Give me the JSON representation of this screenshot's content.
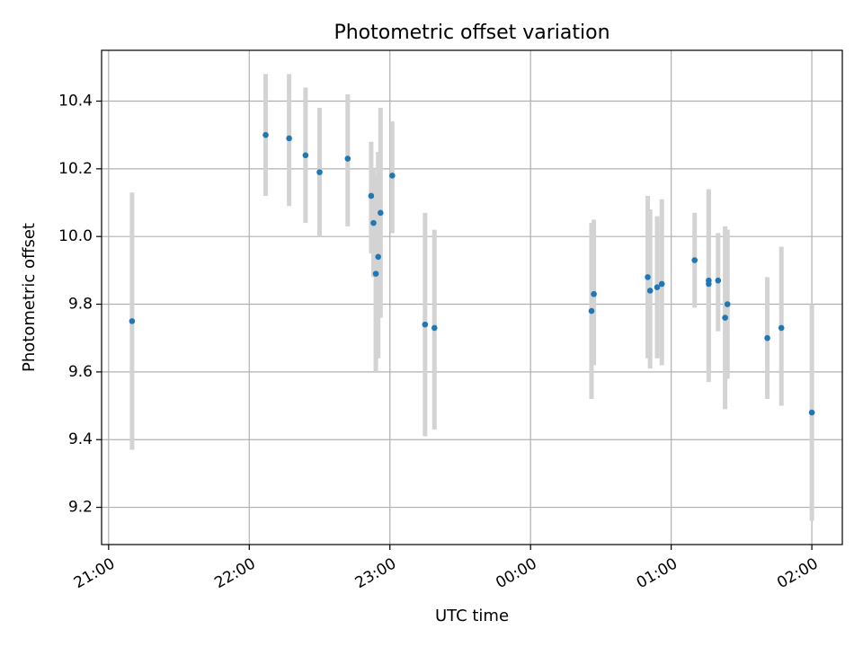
{
  "chart_data": {
    "type": "scatter",
    "title": "Photometric offset variation",
    "xlabel": "UTC time",
    "ylabel": "Photometric offset",
    "x_tick_labels": [
      "21:00",
      "22:00",
      "23:00",
      "00:00",
      "01:00",
      "02:00"
    ],
    "y_tick_labels": [
      "9.2",
      "9.4",
      "9.6",
      "9.8",
      "10.0",
      "10.2",
      "10.4"
    ],
    "x_ticks": [
      "21:00",
      "22:00",
      "23:00",
      "24:00",
      "25:00",
      "26:00"
    ],
    "y_ticks": [
      9.2,
      9.4,
      9.6,
      9.8,
      10.0,
      10.2,
      10.4
    ],
    "xlim": [
      "20:57",
      "26:13"
    ],
    "ylim": [
      9.09,
      10.55
    ],
    "grid": true,
    "series": [
      {
        "marker_color": "#1f77b4",
        "errorbar_color": "#d3d3d3",
        "points": [
          {
            "x": "21:10",
            "y": 9.75,
            "low": 9.37,
            "high": 10.13
          },
          {
            "x": "22:07",
            "y": 10.3,
            "low": 10.12,
            "high": 10.48
          },
          {
            "x": "22:17",
            "y": 10.29,
            "low": 10.09,
            "high": 10.48
          },
          {
            "x": "22:24",
            "y": 10.24,
            "low": 10.04,
            "high": 10.44
          },
          {
            "x": "22:30",
            "y": 10.19,
            "low": 10.0,
            "high": 10.38
          },
          {
            "x": "22:42",
            "y": 10.23,
            "low": 10.03,
            "high": 10.42
          },
          {
            "x": "22:52",
            "y": 10.12,
            "low": 9.95,
            "high": 10.28
          },
          {
            "x": "22:53",
            "y": 10.04,
            "low": 9.88,
            "high": 10.2
          },
          {
            "x": "22:54",
            "y": 9.89,
            "low": 9.6,
            "high": 10.18
          },
          {
            "x": "22:55",
            "y": 9.94,
            "low": 9.64,
            "high": 10.25
          },
          {
            "x": "22:56",
            "y": 10.07,
            "low": 9.76,
            "high": 10.38
          },
          {
            "x": "23:01",
            "y": 10.18,
            "low": 10.01,
            "high": 10.34
          },
          {
            "x": "23:15",
            "y": 9.74,
            "low": 9.41,
            "high": 10.07
          },
          {
            "x": "23:19",
            "y": 9.73,
            "low": 9.43,
            "high": 10.02
          },
          {
            "x": "24:26",
            "y": 9.78,
            "low": 9.52,
            "high": 10.04
          },
          {
            "x": "24:27",
            "y": 9.83,
            "low": 9.62,
            "high": 10.05
          },
          {
            "x": "24:50",
            "y": 9.88,
            "low": 9.64,
            "high": 10.12
          },
          {
            "x": "24:51",
            "y": 9.84,
            "low": 9.61,
            "high": 10.08
          },
          {
            "x": "24:54",
            "y": 9.85,
            "low": 9.64,
            "high": 10.06
          },
          {
            "x": "24:56",
            "y": 9.86,
            "low": 9.62,
            "high": 10.11
          },
          {
            "x": "25:10",
            "y": 9.93,
            "low": 9.79,
            "high": 10.07
          },
          {
            "x": "25:16",
            "y": 9.87,
            "low": 9.57,
            "high": 10.14
          },
          {
            "x": "25:16",
            "y": 9.86,
            "low": 9.6,
            "high": 10.13
          },
          {
            "x": "25:20",
            "y": 9.87,
            "low": 9.72,
            "high": 10.01
          },
          {
            "x": "25:23",
            "y": 9.76,
            "low": 9.49,
            "high": 10.03
          },
          {
            "x": "25:24",
            "y": 9.8,
            "low": 9.58,
            "high": 10.02
          },
          {
            "x": "25:41",
            "y": 9.7,
            "low": 9.52,
            "high": 9.88
          },
          {
            "x": "25:47",
            "y": 9.73,
            "low": 9.5,
            "high": 9.97
          },
          {
            "x": "26:00",
            "y": 9.48,
            "low": 9.16,
            "high": 9.8
          }
        ]
      }
    ]
  }
}
